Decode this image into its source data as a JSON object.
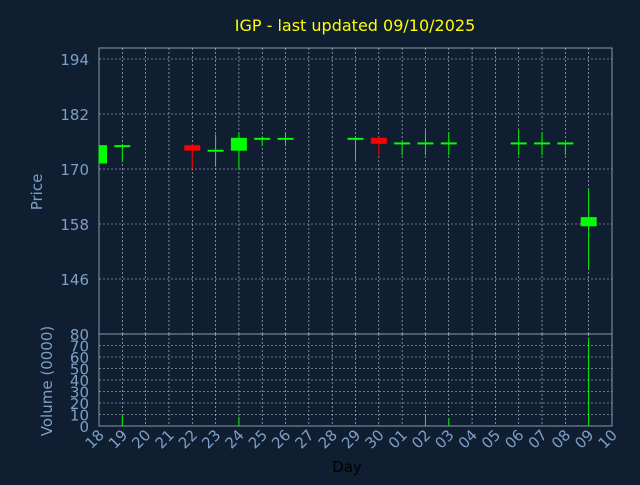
{
  "chart_data": {
    "type": "candlestick",
    "title": "IGP - last updated 09/10/2025",
    "xlabel": "Day",
    "ylabel_price": "Price",
    "ylabel_volume": "Volume (0000)",
    "price_ticks": [
      194,
      182,
      170,
      158,
      146
    ],
    "price_range": [
      134,
      196.4
    ],
    "volume_ticks": [
      0,
      10,
      20,
      30,
      40,
      50,
      60,
      70,
      80
    ],
    "volume_range": [
      0,
      80
    ],
    "x_ticks": [
      "18",
      "19",
      "20",
      "21",
      "22",
      "23",
      "24",
      "25",
      "26",
      "27",
      "28",
      "29",
      "30",
      "01",
      "02",
      "03",
      "04",
      "05",
      "06",
      "07",
      "08",
      "09",
      "10"
    ],
    "grid": true,
    "colors": {
      "background": "#0f1e30",
      "plot_border": "#8a9bb0",
      "grid": "#c8d0dc",
      "title": "#ffff00",
      "axis_text": "#7f9fc7",
      "up": "#00ff00",
      "down": "#ff0000"
    },
    "candles": [
      {
        "day": "18",
        "open": 171.2,
        "high": 175.2,
        "low": 171.2,
        "close": 175.2
      },
      {
        "day": "19",
        "open": 175.0,
        "high": 175.5,
        "low": 171.5,
        "close": 175.2
      },
      {
        "day": "22",
        "open": 175.2,
        "high": 175.5,
        "low": 170.0,
        "close": 174.0
      },
      {
        "day": "23",
        "open": 173.8,
        "high": 177.5,
        "low": 170.5,
        "close": 174.2
      },
      {
        "day": "24",
        "open": 174.0,
        "high": 178.0,
        "low": 170.0,
        "close": 176.8
      },
      {
        "day": "25",
        "open": 176.5,
        "high": 177.0,
        "low": 175.0,
        "close": 176.8
      },
      {
        "day": "26",
        "open": 176.5,
        "high": 177.8,
        "low": 175.0,
        "close": 176.8
      },
      {
        "day": "29",
        "open": 176.5,
        "high": 177.2,
        "low": 172.0,
        "close": 176.8
      },
      {
        "day": "30",
        "open": 176.8,
        "high": 177.0,
        "low": 173.0,
        "close": 175.5
      },
      {
        "day": "01",
        "open": 175.5,
        "high": 176.0,
        "low": 173.0,
        "close": 175.8
      },
      {
        "day": "02",
        "open": 175.5,
        "high": 178.5,
        "low": 173.0,
        "close": 175.8
      },
      {
        "day": "03",
        "open": 175.5,
        "high": 178.0,
        "low": 173.0,
        "close": 175.8
      },
      {
        "day": "06",
        "open": 175.5,
        "high": 178.5,
        "low": 173.0,
        "close": 175.8
      },
      {
        "day": "07",
        "open": 175.5,
        "high": 178.0,
        "low": 173.0,
        "close": 175.8
      },
      {
        "day": "08",
        "open": 175.5,
        "high": 175.8,
        "low": 173.0,
        "close": 175.8
      },
      {
        "day": "09",
        "open": 157.5,
        "high": 165.5,
        "low": 148.0,
        "close": 159.5
      }
    ],
    "volume": [
      {
        "day": "19",
        "value": 10
      },
      {
        "day": "24",
        "value": 8
      },
      {
        "day": "30",
        "value": 1
      },
      {
        "day": "02",
        "value": 10
      },
      {
        "day": "03",
        "value": 7
      },
      {
        "day": "09",
        "value": 77
      }
    ]
  }
}
